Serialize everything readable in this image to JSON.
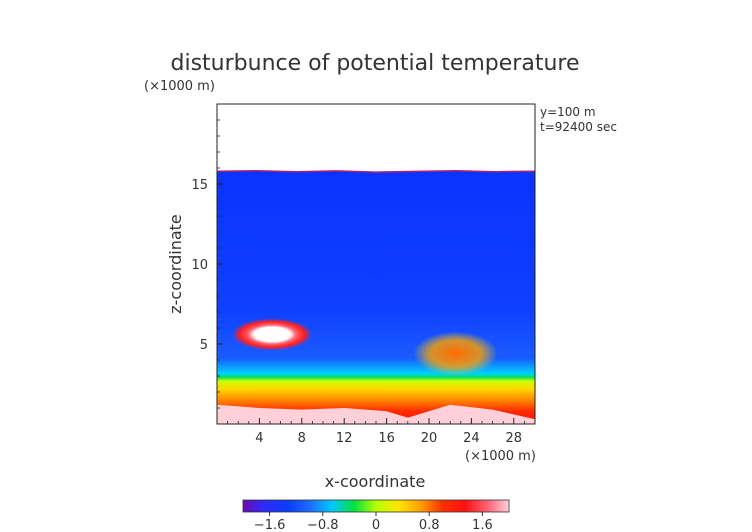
{
  "chart_data": {
    "type": "heatmap",
    "title": "disturbunce of potential temperature",
    "xlabel": "x-coordinate",
    "ylabel": "z-coordinate",
    "x_unit": "(×1000 m)",
    "y_unit": "(×1000 m)",
    "annotations": [
      "y=100 m",
      "t=92400 sec"
    ],
    "xlim": [
      0,
      30
    ],
    "ylim": [
      0,
      20
    ],
    "x_ticks": [
      4,
      8,
      12,
      16,
      20,
      24,
      28
    ],
    "y_ticks": [
      5,
      10,
      15
    ],
    "x_tick_labels": [
      "4",
      "8",
      "12",
      "16",
      "20",
      "24",
      "28"
    ],
    "y_tick_labels": [
      "5",
      "10",
      "15"
    ],
    "colorbar": {
      "range": [
        -2.0,
        2.0
      ],
      "ticks": [
        -1.6,
        -0.8,
        0,
        0.8,
        1.6
      ],
      "tick_labels": [
        "−1.6",
        "−0.8",
        "0",
        "0.8",
        "1.6"
      ],
      "colors": [
        "#6a0dad",
        "#2b2bff",
        "#0a3cff",
        "#1e6bff",
        "#00c8ff",
        "#00e040",
        "#b4ff00",
        "#ffe600",
        "#ffa000",
        "#ff3000",
        "#ff1010",
        "#ff6070",
        "#ffd0d8"
      ]
    },
    "field_top_z": 15.8,
    "field_boundary_z": 5.6,
    "bottom_layer": [
      {
        "x": 0,
        "z": 1.2
      },
      {
        "x": 4,
        "z": 1.0
      },
      {
        "x": 8,
        "z": 0.9
      },
      {
        "x": 12,
        "z": 1.0
      },
      {
        "x": 16,
        "z": 0.8
      },
      {
        "x": 18,
        "z": 0.4
      },
      {
        "x": 22,
        "z": 1.2
      },
      {
        "x": 26,
        "z": 0.9
      },
      {
        "x": 30,
        "z": 0.3
      }
    ],
    "features": [
      {
        "label": "warm anomaly",
        "x": 5.2,
        "z": 5.6,
        "value": 2.0
      },
      {
        "label": "warm pocket",
        "x": 22.5,
        "z": 4.4,
        "value": 0.8
      }
    ]
  }
}
